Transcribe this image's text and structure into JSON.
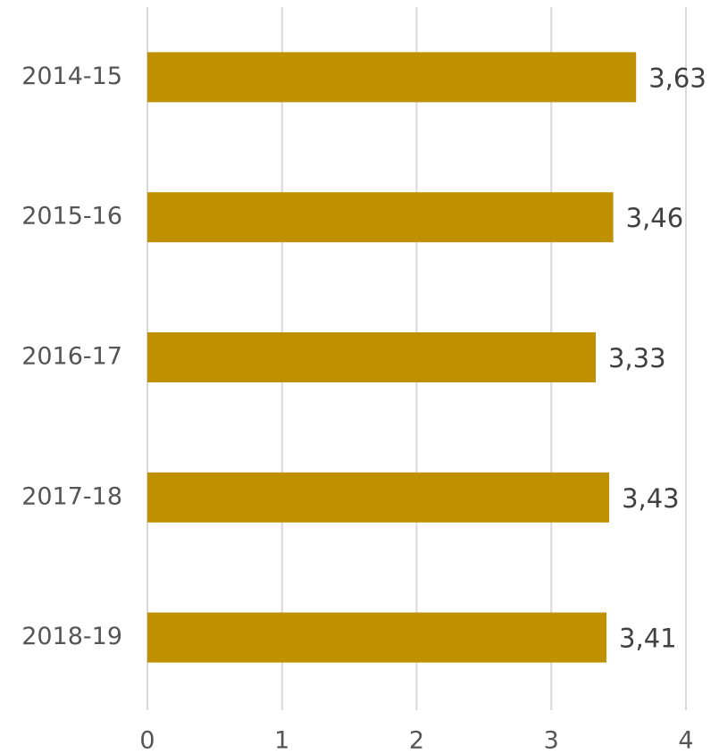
{
  "chart_data": {
    "type": "barh",
    "categories": [
      "2014-15",
      "2015-16",
      "2016-17",
      "2017-18",
      "2018-19"
    ],
    "values": [
      3.63,
      3.46,
      3.33,
      3.43,
      3.41
    ],
    "value_labels": [
      "3,63",
      "3,46",
      "3,33",
      "3,43",
      "3,41"
    ],
    "color": "#bf9000",
    "xlim": [
      0,
      4
    ],
    "xticks": [
      0,
      1,
      2,
      3,
      4
    ],
    "grid": true
  }
}
